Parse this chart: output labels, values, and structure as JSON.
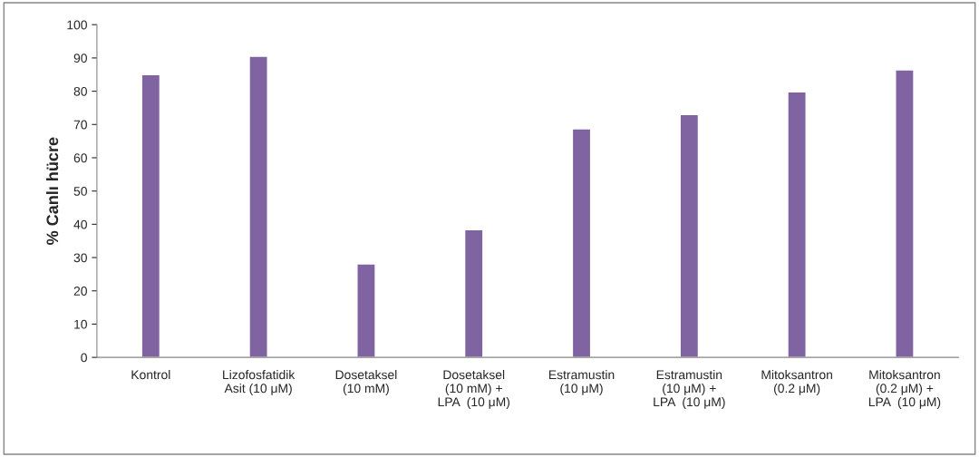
{
  "chart_data": {
    "type": "bar",
    "ylabel": "% Canlı hücre",
    "categories": [
      "Kontrol",
      "Lizofosfatidik\nAsit (10 μM)",
      "Dosetaksel\n(10 mM)",
      "Dosetaksel\n(10 mM) +\nLPA  (10 μM)",
      "Estramustin\n(10 μM)",
      "Estramustin\n(10 μM) +\nLPA  (10 μM)",
      "Mitoksantron\n(0.2 μM)",
      "Mitoksantron\n(0.2 μM) +\nLPA  (10 μM)"
    ],
    "values": [
      85.0,
      90.5,
      28.1,
      38.4,
      68.7,
      73.0,
      79.8,
      86.4
    ],
    "color": "#8064a2",
    "ylim": [
      0,
      100
    ],
    "yticks": [
      0,
      10,
      20,
      30,
      40,
      50,
      60,
      70,
      80,
      90,
      100
    ],
    "grid": false,
    "legend": false
  }
}
